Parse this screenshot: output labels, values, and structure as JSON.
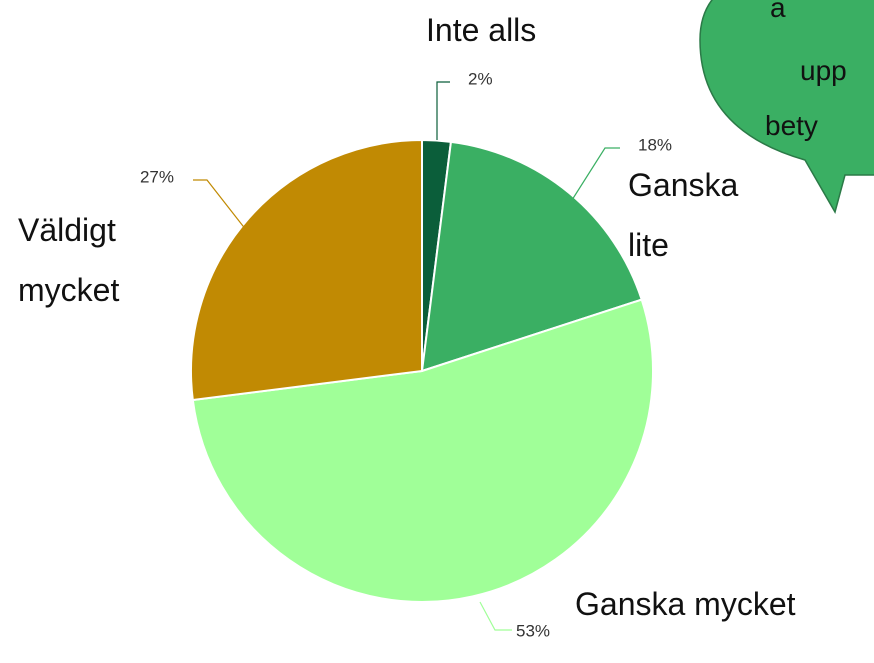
{
  "chart_data": {
    "type": "pie",
    "categories": [
      "Inte alls",
      "Ganska lite",
      "Ganska mycket",
      "Väldigt mycket"
    ],
    "values": [
      2,
      18,
      53,
      27
    ],
    "value_labels": [
      "2%",
      "18%",
      "53%",
      "27%"
    ],
    "colors": [
      "#0b5e3a",
      "#3aaf63",
      "#a0ff98",
      "#c18a03"
    ],
    "annotations": [
      "a",
      "upp",
      "bety"
    ]
  }
}
